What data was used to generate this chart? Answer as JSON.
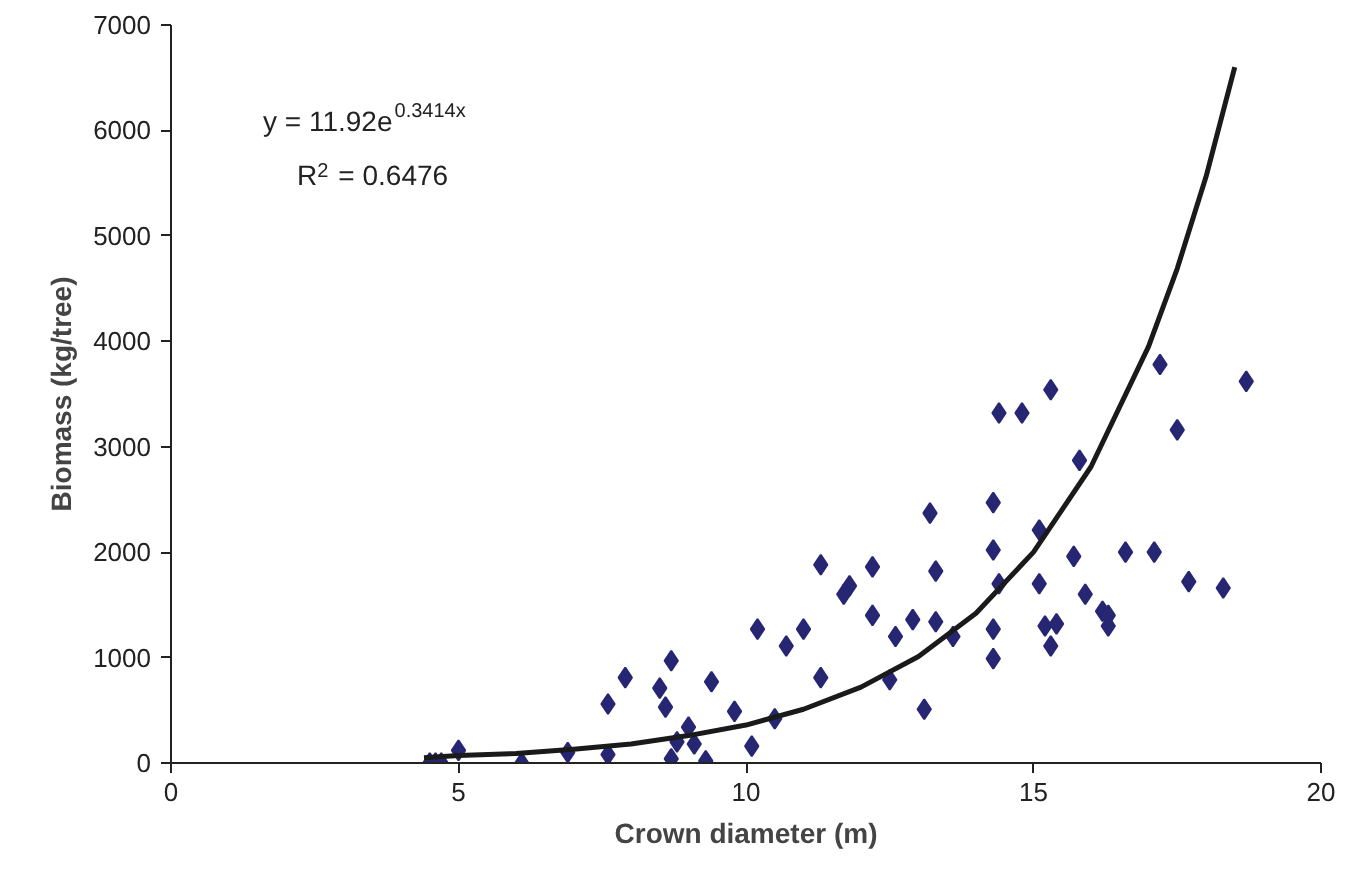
{
  "chart_data": {
    "type": "scatter",
    "xlabel": "Crown diameter (m)",
    "ylabel": "Biomass (kg/tree)",
    "xlim": [
      0,
      20
    ],
    "ylim": [
      0,
      7000
    ],
    "xticks": [
      0,
      5,
      10,
      15,
      20
    ],
    "yticks": [
      0,
      1000,
      2000,
      3000,
      4000,
      5000,
      6000,
      7000
    ],
    "grid": false,
    "annotations": [
      "y = 11.92e$^{0.3414x}$",
      "R$^{2}$ = 0.6476"
    ],
    "series": [
      {
        "marker": "diamond",
        "color": "#262673",
        "x": [
          4.5,
          4.6,
          4.7,
          5.0,
          6.1,
          6.9,
          7.6,
          7.9,
          7.6,
          8.5,
          8.6,
          8.7,
          8.7,
          8.8,
          9.0,
          9.1,
          9.3,
          9.4,
          9.8,
          10.1,
          10.2,
          10.5,
          10.7,
          11.0,
          11.3,
          11.3,
          11.7,
          11.8,
          12.2,
          12.2,
          12.6,
          12.9,
          13.3,
          13.3,
          13.2,
          12.5,
          13.1,
          13.6,
          14.3,
          14.3,
          14.3,
          14.3,
          14.4,
          14.8,
          14.4,
          15.1,
          15.1,
          15.2,
          15.3,
          15.4,
          15.3,
          15.7,
          15.8,
          15.9,
          16.2,
          16.3,
          16.3,
          16.6,
          17.1,
          17.2,
          17.5,
          17.7,
          18.3,
          18.7
        ],
        "values": [
          0,
          0,
          0,
          120,
          0,
          100,
          560,
          810,
          80,
          710,
          530,
          970,
          40,
          200,
          340,
          180,
          20,
          770,
          490,
          160,
          1270,
          420,
          1110,
          1270,
          810,
          1880,
          1600,
          1680,
          1860,
          1400,
          1200,
          1360,
          1340,
          1820,
          2370,
          790,
          510,
          1200,
          1270,
          990,
          2020,
          2470,
          3320,
          3320,
          1700,
          2210,
          1700,
          1300,
          1110,
          1320,
          3540,
          1960,
          2870,
          1600,
          1440,
          1400,
          1300,
          2000,
          2000,
          3780,
          3160,
          1720,
          1660,
          3620
        ]
      },
      {
        "type": "line",
        "color": "#1a1a1a",
        "line_style": "solid",
        "x": [
          4.4,
          5,
          6,
          7,
          8,
          9,
          10,
          11,
          12,
          13,
          14,
          15,
          16,
          17,
          17.5,
          18,
          18.5
        ],
        "values": [
          50,
          70,
          90,
          130,
          180,
          260,
          360,
          510,
          720,
          1010,
          1420,
          2000,
          2810,
          3950,
          4690,
          5560,
          6600
        ]
      }
    ]
  }
}
